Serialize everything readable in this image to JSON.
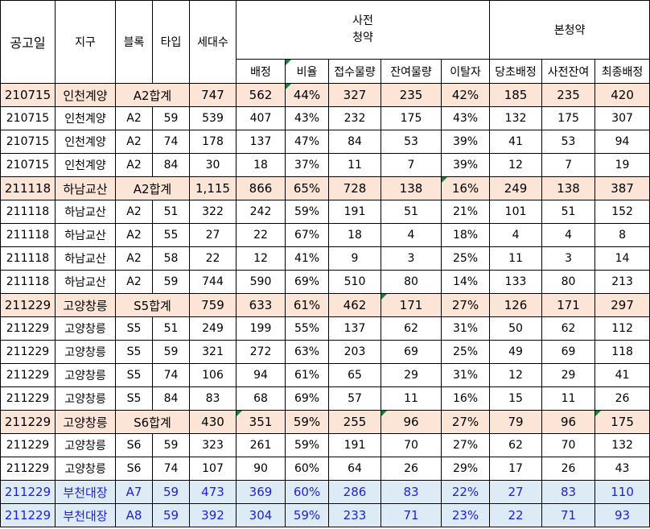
{
  "headers": {
    "date": "공고일",
    "district": "지구",
    "block": "블록",
    "type": "타입",
    "households": "세대수",
    "pre_group": "사전\n청약",
    "main_group": "본청약",
    "pre_sub": [
      "배정",
      "비율",
      "접수물량",
      "잔여물량",
      "이탈자"
    ],
    "main_sub": [
      "당초배정",
      "사전잔여",
      "최종배정"
    ]
  },
  "rows": [
    {
      "style": "sum",
      "cells": [
        "210715",
        "인천계양",
        "A2합계",
        "747",
        "562",
        "44%",
        "327",
        "235",
        "42%",
        "185",
        "235",
        "420"
      ],
      "merge": true,
      "marks": [
        5
      ]
    },
    {
      "style": "",
      "cells": [
        "210715",
        "인천계양",
        "A2",
        "59",
        "539",
        "407",
        "43%",
        "232",
        "175",
        "43%",
        "132",
        "175",
        "307"
      ],
      "marks": []
    },
    {
      "style": "",
      "cells": [
        "210715",
        "인천계양",
        "A2",
        "74",
        "178",
        "137",
        "47%",
        "84",
        "53",
        "39%",
        "41",
        "53",
        "94"
      ],
      "marks": []
    },
    {
      "style": "",
      "cells": [
        "210715",
        "인천계양",
        "A2",
        "84",
        "30",
        "18",
        "37%",
        "11",
        "7",
        "39%",
        "12",
        "7",
        "19"
      ],
      "marks": []
    },
    {
      "style": "sum",
      "cells": [
        "211118",
        "하남교산",
        "A2합계",
        "1,115",
        "866",
        "65%",
        "728",
        "138",
        "16%",
        "249",
        "138",
        "387"
      ],
      "merge": true,
      "marks": [
        8
      ]
    },
    {
      "style": "",
      "cells": [
        "211118",
        "하남교산",
        "A2",
        "51",
        "322",
        "242",
        "59%",
        "191",
        "51",
        "21%",
        "101",
        "51",
        "152"
      ],
      "marks": []
    },
    {
      "style": "",
      "cells": [
        "211118",
        "하남교산",
        "A2",
        "55",
        "27",
        "22",
        "67%",
        "18",
        "4",
        "18%",
        "4",
        "4",
        "8"
      ],
      "marks": []
    },
    {
      "style": "",
      "cells": [
        "211118",
        "하남교산",
        "A2",
        "58",
        "22",
        "12",
        "41%",
        "9",
        "3",
        "25%",
        "11",
        "3",
        "14"
      ],
      "marks": []
    },
    {
      "style": "",
      "cells": [
        "211118",
        "하남교산",
        "A2",
        "59",
        "744",
        "590",
        "69%",
        "510",
        "80",
        "14%",
        "133",
        "80",
        "213"
      ],
      "marks": []
    },
    {
      "style": "sum",
      "cells": [
        "211229",
        "고양창릉",
        "S5합계",
        "759",
        "633",
        "61%",
        "462",
        "171",
        "27%",
        "126",
        "171",
        "297"
      ],
      "merge": true,
      "marks": [
        7
      ]
    },
    {
      "style": "",
      "cells": [
        "211229",
        "고양창릉",
        "S5",
        "51",
        "249",
        "199",
        "55%",
        "137",
        "62",
        "31%",
        "50",
        "62",
        "112"
      ],
      "marks": []
    },
    {
      "style": "",
      "cells": [
        "211229",
        "고양창릉",
        "S5",
        "59",
        "321",
        "272",
        "63%",
        "203",
        "69",
        "25%",
        "49",
        "69",
        "118"
      ],
      "marks": []
    },
    {
      "style": "",
      "cells": [
        "211229",
        "고양창릉",
        "S5",
        "74",
        "106",
        "94",
        "61%",
        "65",
        "29",
        "31%",
        "12",
        "29",
        "41"
      ],
      "marks": []
    },
    {
      "style": "",
      "cells": [
        "211229",
        "고양창릉",
        "S5",
        "84",
        "83",
        "68",
        "69%",
        "57",
        "11",
        "16%",
        "15",
        "11",
        "26"
      ],
      "marks": []
    },
    {
      "style": "sum",
      "cells": [
        "211229",
        "고양창릉",
        "S6합계",
        "430",
        "351",
        "59%",
        "255",
        "96",
        "27%",
        "79",
        "96",
        "175"
      ],
      "merge": true,
      "marks": [
        4,
        7,
        11
      ]
    },
    {
      "style": "",
      "cells": [
        "211229",
        "고양창릉",
        "S6",
        "59",
        "323",
        "261",
        "59%",
        "191",
        "70",
        "27%",
        "62",
        "70",
        "132"
      ],
      "marks": []
    },
    {
      "style": "",
      "cells": [
        "211229",
        "고양창릉",
        "S6",
        "74",
        "107",
        "90",
        "60%",
        "64",
        "26",
        "29%",
        "17",
        "26",
        "43"
      ],
      "marks": []
    },
    {
      "style": "blue",
      "cells": [
        "211229",
        "부천대장",
        "A7",
        "59",
        "473",
        "369",
        "60%",
        "286",
        "83",
        "22%",
        "27",
        "83",
        "110"
      ],
      "marks": []
    },
    {
      "style": "blue",
      "cells": [
        "211229",
        "부천대장",
        "A8",
        "59",
        "392",
        "304",
        "59%",
        "233",
        "71",
        "23%",
        "22",
        "71",
        "93"
      ],
      "marks": []
    }
  ],
  "colors": {
    "sum_row_bg": "#fce4d6",
    "blue_row_bg": "#ddebf7",
    "blue_text": "#1f1fd8",
    "comment_marker": "#1a7f37"
  }
}
